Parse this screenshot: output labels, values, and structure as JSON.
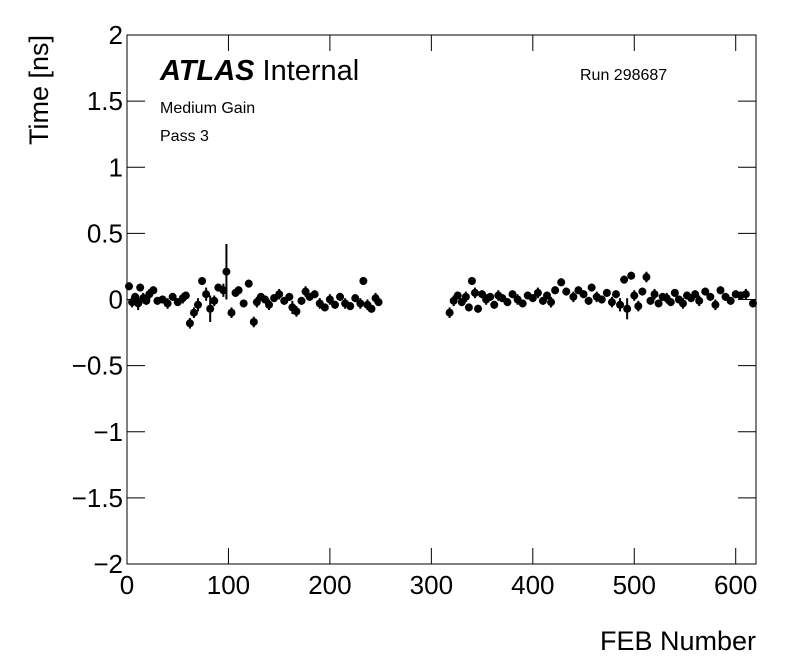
{
  "chart_data": {
    "type": "errorbar",
    "title": "ATLAS",
    "title_suffix": "Internal",
    "annotations": [
      "Medium Gain",
      "Pass 3"
    ],
    "run_label": "Run 298687",
    "x_label": "FEB Number",
    "y_label": "Time [ns]",
    "color": "#000000",
    "xlim": [
      0,
      620
    ],
    "ylim": [
      -2,
      2
    ],
    "xticks": [
      0,
      100,
      200,
      300,
      400,
      500,
      600
    ],
    "yticks": [
      {
        "value": -2,
        "label": "−2"
      },
      {
        "value": -1.5,
        "label": "−1.5"
      },
      {
        "value": -1,
        "label": "−1"
      },
      {
        "value": -0.5,
        "label": "−0.5"
      },
      0,
      0.5,
      1,
      1.5,
      2
    ],
    "x": [
      2,
      5,
      8,
      11,
      13,
      16,
      19,
      22,
      26,
      30,
      35,
      40,
      45,
      50,
      55,
      58,
      62,
      66,
      70,
      74,
      78,
      82,
      86,
      90,
      95,
      98,
      103,
      107,
      110,
      115,
      120,
      125,
      128,
      132,
      136,
      140,
      145,
      150,
      155,
      160,
      163,
      167,
      172,
      176,
      180,
      185,
      190,
      195,
      200,
      205,
      210,
      215,
      220,
      225,
      230,
      233,
      237,
      241,
      245,
      248,
      318,
      322,
      326,
      330,
      334,
      337,
      340,
      343,
      346,
      350,
      354,
      358,
      362,
      366,
      370,
      375,
      380,
      385,
      390,
      395,
      400,
      405,
      410,
      414,
      418,
      422,
      428,
      433,
      440,
      445,
      450,
      455,
      458,
      463,
      468,
      473,
      478,
      482,
      486,
      490,
      493,
      497,
      500,
      504,
      508,
      512,
      516,
      520,
      524,
      528,
      532,
      536,
      540,
      544,
      548,
      552,
      556,
      560,
      564,
      570,
      575,
      580,
      585,
      590,
      595,
      600,
      605,
      610,
      617
    ],
    "values": [
      0.1,
      -0.02,
      0.02,
      -0.03,
      0.09,
      0.01,
      -0.01,
      0.04,
      0.07,
      -0.01,
      0,
      -0.03,
      0.02,
      -0.02,
      0.01,
      0.03,
      -0.18,
      -0.1,
      -0.04,
      0.14,
      0.04,
      -0.07,
      -0.01,
      0.09,
      0.07,
      0.21,
      -0.1,
      0.05,
      0.07,
      -0.03,
      0.12,
      -0.17,
      -0.02,
      0.02,
      0,
      -0.04,
      0.01,
      0.04,
      -0.01,
      0.02,
      -0.06,
      -0.09,
      -0.01,
      0.06,
      0.02,
      0.04,
      -0.03,
      -0.06,
      0,
      -0.04,
      0.02,
      -0.03,
      -0.05,
      0.01,
      -0.03,
      0.14,
      -0.04,
      -0.07,
      0.01,
      -0.02,
      -0.1,
      -0.01,
      0.03,
      -0.02,
      0.02,
      -0.06,
      0.14,
      0.05,
      -0.07,
      0.04,
      0,
      0.02,
      -0.04,
      0.03,
      0.01,
      -0.02,
      0.04,
      0,
      -0.03,
      0.03,
      0.01,
      0.05,
      -0.01,
      0.03,
      -0.02,
      0.07,
      0.13,
      0.06,
      0.02,
      0.07,
      0.04,
      -0.01,
      0.09,
      0.02,
      0,
      0.05,
      -0.02,
      0.04,
      -0.04,
      0.15,
      -0.07,
      0.18,
      0.03,
      -0.05,
      0.06,
      0.17,
      -0.01,
      0.04,
      -0.03,
      0.02,
      0.01,
      -0.02,
      0.05,
      0,
      -0.03,
      0.03,
      0.01,
      0.04,
      -0.01,
      0.06,
      0.02,
      -0.04,
      0.07,
      0.02,
      -0.01,
      0.04,
      0.03,
      0.04,
      -0.03
    ],
    "errors": [
      0.03,
      0.04,
      0.03,
      0.05,
      0.03,
      0.04,
      0.03,
      0.04,
      0.03,
      0.03,
      0.03,
      0.04,
      0.03,
      0.03,
      0.04,
      0.03,
      0.04,
      0.04,
      0.05,
      0.03,
      0.05,
      0.1,
      0.04,
      0.03,
      0.05,
      0.21,
      0.04,
      0.03,
      0.03,
      0.03,
      0.03,
      0.04,
      0.04,
      0.03,
      0.03,
      0.04,
      0.03,
      0.04,
      0.03,
      0.03,
      0.05,
      0.04,
      0.03,
      0.04,
      0.03,
      0.03,
      0.04,
      0.03,
      0.04,
      0.03,
      0.03,
      0.04,
      0.03,
      0.03,
      0.04,
      0.03,
      0.04,
      0.03,
      0.04,
      0.03,
      0.04,
      0.04,
      0.03,
      0.03,
      0.04,
      0.03,
      0.03,
      0.04,
      0.03,
      0.03,
      0.04,
      0.03,
      0.03,
      0.04,
      0.03,
      0.03,
      0.03,
      0.04,
      0.03,
      0.03,
      0.03,
      0.04,
      0.03,
      0.03,
      0.04,
      0.03,
      0.03,
      0.03,
      0.04,
      0.03,
      0.03,
      0.03,
      0.03,
      0.04,
      0.03,
      0.03,
      0.04,
      0.03,
      0.05,
      0.03,
      0.08,
      0.03,
      0.04,
      0.04,
      0.03,
      0.04,
      0.03,
      0.04,
      0.03,
      0.03,
      0.04,
      0.03,
      0.03,
      0.03,
      0.04,
      0.03,
      0.03,
      0.03,
      0.04,
      0.03,
      0.03,
      0.04,
      0.03,
      0.03,
      0.03,
      0.03,
      0.03,
      0.04,
      0.03
    ]
  }
}
